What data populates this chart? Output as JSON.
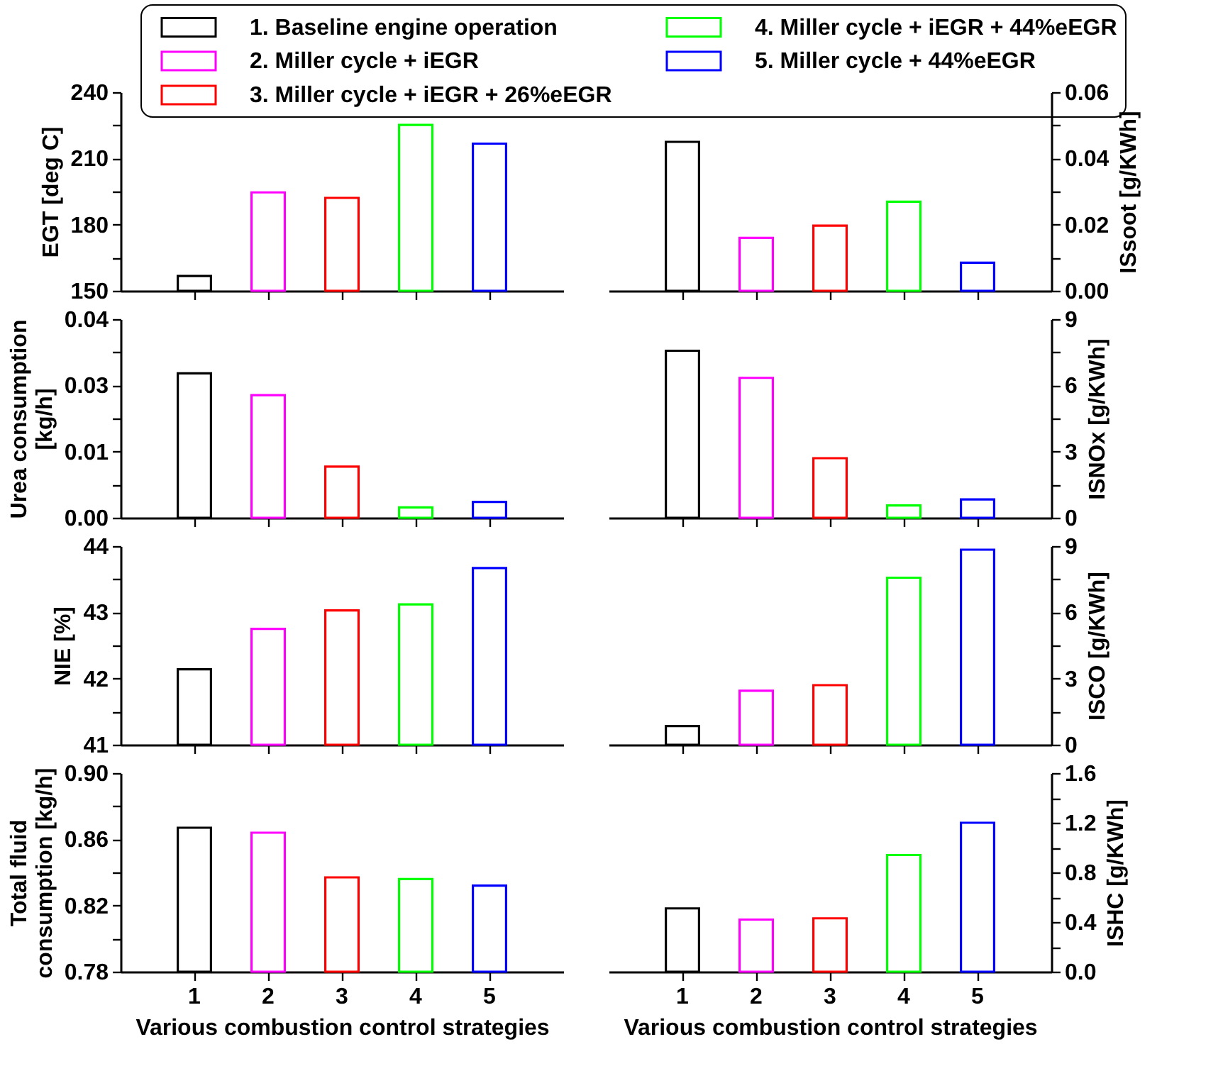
{
  "chart_data": [
    {
      "type": "bar",
      "ylabel": "EGT [deg C]",
      "categories": [
        "1",
        "2",
        "3",
        "4",
        "5"
      ],
      "legend": "top",
      "tick_labels": "y",
      "series": [
        {
          "name": "1. Baseline engine operation",
          "color": "#000000",
          "values": [
            156.7,
            null,
            null,
            null,
            null
          ]
        },
        {
          "name": "2. Miller cycle + iEGR",
          "color": "#ff00ff",
          "values": [
            null,
            194.6,
            null,
            null,
            null
          ]
        },
        {
          "name": "3. Miller cycle + iEGR + 26%eEGR",
          "color": "#ff0000",
          "values": [
            null,
            null,
            192.1,
            null,
            null
          ]
        },
        {
          "name": "4. Miller cycle + iEGR + 44%eEGR",
          "color": "#00ff00",
          "values": [
            null,
            null,
            null,
            225.2,
            null
          ]
        },
        {
          "name": "5. Miller cycle + 44%eEGR",
          "color": "#0000ff",
          "values": [
            null,
            null,
            null,
            null,
            216.7
          ]
        }
      ],
      "ylim": [
        150,
        240
      ],
      "yticks": [
        150,
        {
          "value": 165,
          "label": null
        },
        180,
        {
          "value": 195,
          "label": null
        },
        210,
        {
          "value": 225,
          "label": null
        },
        240
      ]
    },
    {
      "type": "bar",
      "ylabel": "ISsoot [g/KWh]",
      "categories": [
        "1",
        "2",
        "3",
        "4",
        "5"
      ],
      "tick_labels": "y",
      "series": [
        {
          "color": "#000000",
          "values": [
            0.045,
            null,
            null,
            null,
            null
          ]
        },
        {
          "color": "#ff00ff",
          "values": [
            null,
            0.016,
            null,
            null,
            null
          ]
        },
        {
          "color": "#ff0000",
          "values": [
            null,
            null,
            0.0197,
            null,
            null
          ]
        },
        {
          "color": "#00ff00",
          "values": [
            null,
            null,
            null,
            0.0269,
            null
          ]
        },
        {
          "color": "#0000ff",
          "values": [
            null,
            null,
            null,
            null,
            0.0085
          ]
        }
      ],
      "ylim": [
        0,
        0.06
      ],
      "yticks": [
        {
          "value": 0,
          "label": "0.00"
        },
        {
          "value": 0.01,
          "label": null
        },
        0.02,
        {
          "value": 0.03,
          "label": null
        },
        0.04,
        {
          "value": 0.05,
          "label": null
        },
        0.06
      ]
    },
    {
      "type": "bar",
      "ylabel": "Urea consumption [kg/h]",
      "categories": [
        "1",
        "2",
        "3",
        "4",
        "5"
      ],
      "tick_labels": "y",
      "series": [
        {
          "color": "#000000",
          "values": [
            0.0291,
            null,
            null,
            null,
            null
          ]
        },
        {
          "color": "#ff00ff",
          "values": [
            null,
            0.0247,
            null,
            null,
            null
          ]
        },
        {
          "color": "#ff0000",
          "values": [
            null,
            null,
            0.0103,
            null,
            null
          ]
        },
        {
          "color": "#00ff00",
          "values": [
            null,
            null,
            null,
            0.0021,
            null
          ]
        },
        {
          "color": "#0000ff",
          "values": [
            null,
            null,
            null,
            null,
            0.0032
          ]
        }
      ],
      "ylim": [
        0,
        0.04
      ],
      "yticks": [
        {
          "value": 0,
          "label": "0.00"
        },
        {
          "value": 0.00667,
          "label": null
        },
        {
          "value": 0.01333,
          "label": "0.01"
        },
        {
          "value": 0.02,
          "label": null
        },
        {
          "value": 0.02667,
          "label": "0.03"
        },
        {
          "value": 0.03333,
          "label": null
        },
        0.04
      ]
    },
    {
      "type": "bar",
      "ylabel": "ISNOx [g/KWh]",
      "categories": [
        "1",
        "2",
        "3",
        "4",
        "5"
      ],
      "tick_labels": "y",
      "series": [
        {
          "color": "#000000",
          "values": [
            7.57,
            null,
            null,
            null,
            null
          ]
        },
        {
          "color": "#ff00ff",
          "values": [
            null,
            6.34,
            null,
            null,
            null
          ]
        },
        {
          "color": "#ff0000",
          "values": [
            null,
            null,
            2.7,
            null,
            null
          ]
        },
        {
          "color": "#00ff00",
          "values": [
            null,
            null,
            null,
            0.56,
            null
          ]
        },
        {
          "color": "#0000ff",
          "values": [
            null,
            null,
            null,
            null,
            0.83
          ]
        }
      ],
      "ylim": [
        0,
        9
      ],
      "yticks": [
        0,
        {
          "value": 1.5,
          "label": null
        },
        3,
        {
          "value": 4.5,
          "label": null
        },
        6,
        {
          "value": 7.5,
          "label": null
        },
        9
      ]
    },
    {
      "type": "bar",
      "ylabel": "NIE [%]",
      "categories": [
        "1",
        "2",
        "3",
        "4",
        "5"
      ],
      "tick_labels": "y",
      "series": [
        {
          "color": "#000000",
          "values": [
            42.14,
            null,
            null,
            null,
            null
          ]
        },
        {
          "color": "#ff00ff",
          "values": [
            null,
            42.75,
            null,
            null,
            null
          ]
        },
        {
          "color": "#ff0000",
          "values": [
            null,
            null,
            43.03,
            null,
            null
          ]
        },
        {
          "color": "#00ff00",
          "values": [
            null,
            null,
            null,
            43.12,
            null
          ]
        },
        {
          "color": "#0000ff",
          "values": [
            null,
            null,
            null,
            null,
            43.67
          ]
        }
      ],
      "ylim": [
        41,
        44
      ],
      "yticks": [
        41,
        {
          "value": 41.5,
          "label": null
        },
        42,
        {
          "value": 42.5,
          "label": null
        },
        43,
        {
          "value": 43.5,
          "label": null
        },
        44
      ]
    },
    {
      "type": "bar",
      "ylabel": "ISCO [g/KWh]",
      "categories": [
        "1",
        "2",
        "3",
        "4",
        "5"
      ],
      "tick_labels": "y",
      "series": [
        {
          "color": "#000000",
          "values": [
            0.85,
            null,
            null,
            null,
            null
          ]
        },
        {
          "color": "#ff00ff",
          "values": [
            null,
            2.45,
            null,
            null,
            null
          ]
        },
        {
          "color": "#ff0000",
          "values": [
            null,
            null,
            2.7,
            null,
            null
          ]
        },
        {
          "color": "#00ff00",
          "values": [
            null,
            null,
            null,
            7.57,
            null
          ]
        },
        {
          "color": "#0000ff",
          "values": [
            null,
            null,
            null,
            null,
            8.84
          ]
        }
      ],
      "ylim": [
        0,
        9
      ],
      "yticks": [
        0,
        {
          "value": 1.5,
          "label": null
        },
        3,
        {
          "value": 4.5,
          "label": null
        },
        6,
        {
          "value": 7.5,
          "label": null
        },
        9
      ]
    },
    {
      "type": "bar",
      "ylabel": "Total fluid consumption [kg/h]",
      "xlabel": "Various combustion control strategies",
      "categories": [
        "1",
        "2",
        "3",
        "4",
        "5"
      ],
      "series": [
        {
          "color": "#000000",
          "values": [
            0.867,
            null,
            null,
            null,
            null
          ]
        },
        {
          "color": "#ff00ff",
          "values": [
            null,
            0.864,
            null,
            null,
            null
          ]
        },
        {
          "color": "#ff0000",
          "values": [
            null,
            null,
            0.837,
            null,
            null
          ]
        },
        {
          "color": "#00ff00",
          "values": [
            null,
            null,
            null,
            0.836,
            null
          ]
        },
        {
          "color": "#0000ff",
          "values": [
            null,
            null,
            null,
            null,
            0.832
          ]
        }
      ],
      "ylim": [
        0.78,
        0.9
      ],
      "yticks": [
        0.78,
        {
          "value": 0.8,
          "label": null
        },
        0.82,
        {
          "value": 0.84,
          "label": null
        },
        0.86,
        {
          "value": 0.88,
          "label": null
        },
        {
          "value": 0.9,
          "label": "0.90"
        }
      ]
    },
    {
      "type": "bar",
      "ylabel": "ISHC [g/KWh]",
      "xlabel": "Various combustion control strategies",
      "categories": [
        "1",
        "2",
        "3",
        "4",
        "5"
      ],
      "series": [
        {
          "color": "#000000",
          "values": [
            0.51,
            null,
            null,
            null,
            null
          ]
        },
        {
          "color": "#ff00ff",
          "values": [
            null,
            0.42,
            null,
            null,
            null
          ]
        },
        {
          "color": "#ff0000",
          "values": [
            null,
            null,
            0.43,
            null,
            null
          ]
        },
        {
          "color": "#00ff00",
          "values": [
            null,
            null,
            null,
            0.94,
            null
          ]
        },
        {
          "color": "#0000ff",
          "values": [
            null,
            null,
            null,
            null,
            1.2
          ]
        }
      ],
      "ylim": [
        0,
        1.6
      ],
      "yticks": [
        {
          "value": 0,
          "label": "0.0"
        },
        {
          "value": 0.2,
          "label": null
        },
        0.4,
        {
          "value": 0.6,
          "label": null
        },
        0.8,
        {
          "value": 1.0,
          "label": null
        },
        1.2,
        {
          "value": 1.4,
          "label": null
        },
        1.6
      ]
    }
  ]
}
